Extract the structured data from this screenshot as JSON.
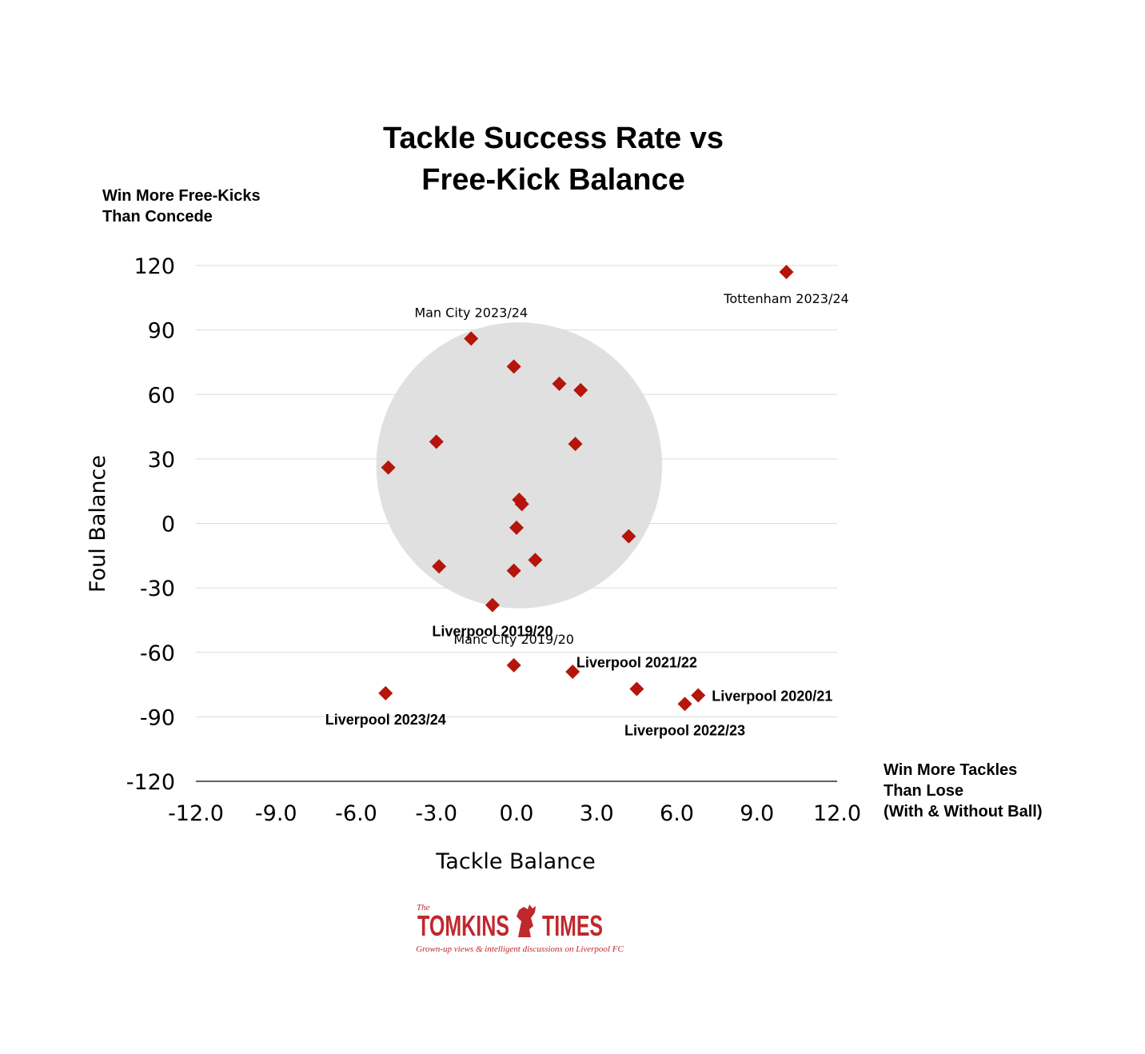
{
  "chart_data": {
    "type": "scatter",
    "title_lines": [
      "Tackle Success Rate vs",
      "Free-Kick Balance"
    ],
    "xlabel": "Tackle Balance",
    "ylabel": "Foul Balance",
    "corner_y_lines": [
      "Win More Free-Kicks",
      "Than Concede"
    ],
    "corner_x_lines": [
      "Win More Tackles",
      "Than Lose",
      "(With & Without Ball)"
    ],
    "xlim": [
      -12,
      12
    ],
    "ylim": [
      -120,
      120
    ],
    "x_ticks": [
      -12,
      -9,
      -6,
      -3,
      0,
      3,
      6,
      9,
      12
    ],
    "x_tick_labels": [
      "-12.0",
      "-9.0",
      "-6.0",
      "-3.0",
      "0.0",
      "3.0",
      "6.0",
      "9.0",
      "12.0"
    ],
    "y_ticks": [
      120,
      90,
      60,
      30,
      0,
      -30,
      -60,
      -90,
      -120
    ],
    "y_tick_labels": [
      "120",
      "90",
      "60",
      "30",
      "0",
      "-30",
      "-60",
      "-90",
      "-120"
    ],
    "grid": "horizontal",
    "marker_color": "#b5150b",
    "highlight_circle": {
      "cx": 0.1,
      "cy": 27,
      "r_x": 5.35,
      "color": "#e0e0e0"
    },
    "points": [
      {
        "x": 10.1,
        "y": 117,
        "label": "Tottenham 2023/24",
        "bold": false,
        "label_pos": "below"
      },
      {
        "x": -1.7,
        "y": 86,
        "label": "Man City 2023/24",
        "bold": false,
        "label_pos": "above"
      },
      {
        "x": -0.1,
        "y": 73
      },
      {
        "x": 1.6,
        "y": 65
      },
      {
        "x": 2.4,
        "y": 62
      },
      {
        "x": -3.0,
        "y": 38
      },
      {
        "x": 2.2,
        "y": 37
      },
      {
        "x": -4.8,
        "y": 26
      },
      {
        "x": 0.1,
        "y": 11
      },
      {
        "x": 0.2,
        "y": 9
      },
      {
        "x": 0.0,
        "y": -2
      },
      {
        "x": 4.2,
        "y": -6
      },
      {
        "x": -2.9,
        "y": -20
      },
      {
        "x": 0.7,
        "y": -17
      },
      {
        "x": -0.1,
        "y": -22
      },
      {
        "x": -0.9,
        "y": -38,
        "label": "Liverpool 2019/20",
        "bold": true,
        "label_pos": "below"
      },
      {
        "x": -0.1,
        "y": -66,
        "label": "Manc City 2019/20",
        "bold": false,
        "label_pos": "above"
      },
      {
        "x": 2.1,
        "y": -69
      },
      {
        "x": 4.5,
        "y": -77,
        "label": "Liverpool 2021/22",
        "bold": true,
        "label_pos": "above"
      },
      {
        "x": 6.8,
        "y": -80,
        "label": "Liverpool 2020/21",
        "bold": true,
        "label_pos": "right"
      },
      {
        "x": 6.3,
        "y": -84,
        "label": "Liverpool 2022/23",
        "bold": true,
        "label_pos": "below"
      },
      {
        "x": -4.9,
        "y": -79,
        "label": "Liverpool 2023/24",
        "bold": true,
        "label_pos": "below"
      }
    ]
  },
  "logo": {
    "the": "The",
    "name_left": "TOMKINS",
    "name_right": "TIMES",
    "tagline": "Grown-up views & intelligent discussions on Liverpool FC",
    "color": "#c0282d"
  }
}
